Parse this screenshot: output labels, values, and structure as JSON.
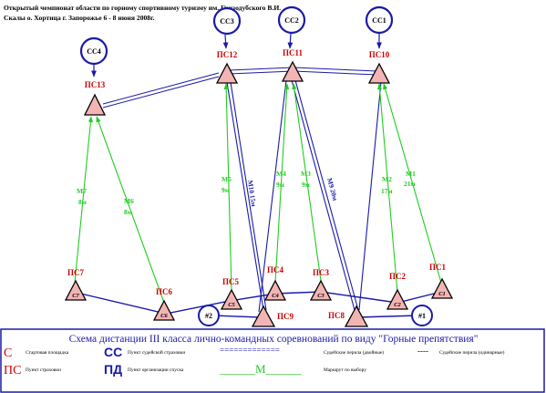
{
  "header": {
    "line1": "Открытый чемпионат области по горному спортивному туризму им. Гризодубского В.И.",
    "line2": "Скалы о. Хортица г. Запорожье 6 - 8 июня 2008г."
  },
  "judge_posts": {
    "cc1": "СС1",
    "cc2": "СС2",
    "cc3": "СС3",
    "cc4": "СС4"
  },
  "stations": {
    "ps1": {
      "label": "ПС1",
      "inner": "С1"
    },
    "ps2": {
      "label": "ПС2",
      "inner": "С2"
    },
    "ps3": {
      "label": "ПС3",
      "inner": "С3"
    },
    "ps4": {
      "label": "ПС4",
      "inner": "С4"
    },
    "ps5": {
      "label": "ПС5",
      "inner": "С5"
    },
    "ps6": {
      "label": "ПС6",
      "inner": "С6"
    },
    "ps7": {
      "label": "ПС7",
      "inner": "С7"
    },
    "ps8": {
      "label": "ПС8"
    },
    "ps9": {
      "label": "ПС9"
    },
    "ps10": {
      "label": "ПС10"
    },
    "ps11": {
      "label": "ПС11"
    },
    "ps12": {
      "label": "ПС12"
    },
    "ps13": {
      "label": "ПС13"
    }
  },
  "finish_points": {
    "pd1": "#1",
    "pd2": "#2"
  },
  "routes": {
    "m1": {
      "name": "М1",
      "length": "21м"
    },
    "m2": {
      "name": "М2",
      "length": "17м"
    },
    "m3": {
      "name": "М3",
      "length": "9м"
    },
    "m4": {
      "name": "М4",
      "length": "9м"
    },
    "m5": {
      "name": "М5",
      "length": "9м"
    },
    "m6": {
      "name": "М6",
      "length": "8м"
    },
    "m7": {
      "name": "М7",
      "length": "8м"
    },
    "m9": "М9 20м",
    "m10": "М10 15м"
  },
  "legend": {
    "title": "Схема дистанции III класса лично-командных соревнований по виду \"Горные препятствия\"",
    "start_symbol": "С",
    "start_text": "Стартовая площадка",
    "ps_symbol": "ПС",
    "ps_text": "Пункт страховки",
    "cc_symbol": "СС",
    "cc_text": "Пункт судейской страховки",
    "pd_symbol": "ПД",
    "pd_text": "Пункт организации спуска",
    "double_line": "=============",
    "double_text": "Судейские перила (двойные)",
    "single_line": "----",
    "single_text": "Судейские перила (одинарные)",
    "route_symbol": "______М______",
    "route_text": "Маршрут по выбору"
  },
  "colors": {
    "red": "#cc0000",
    "blue": "#1a1aa8",
    "green": "#22cc22",
    "triangle_fill": "#f3b4b4"
  }
}
